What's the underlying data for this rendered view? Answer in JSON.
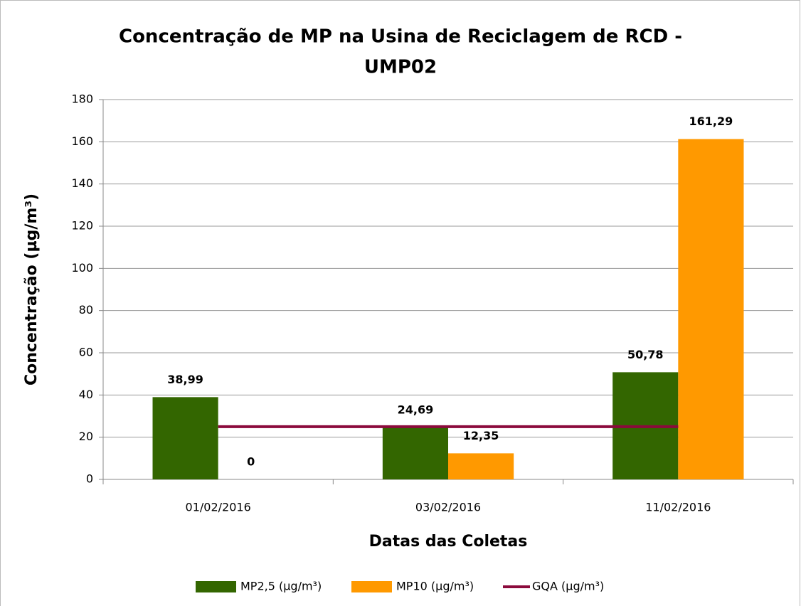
{
  "chart_data": {
    "type": "bar",
    "title": [
      "Concentração de MP na Usina de Reciclagem de RCD -",
      "UMP02"
    ],
    "x_label": "Datas das Coletas",
    "y_label": "Concentração (µg/m³)",
    "categories": [
      "01/02/2016",
      "03/02/2016",
      "11/02/2016"
    ],
    "series": [
      {
        "name": "MP2,5 (µg/m³)",
        "type": "bar",
        "color": "#336600",
        "values": [
          38.99,
          24.69,
          50.78
        ],
        "value_labels": [
          "38,99",
          "24,69",
          "50,78"
        ]
      },
      {
        "name": "MP10 (µg/m³)",
        "type": "bar",
        "color": "#ff9900",
        "values": [
          0,
          12.35,
          161.29
        ],
        "value_labels": [
          "0",
          "12,35",
          "161,29"
        ]
      },
      {
        "name": "GQA (µg/m³)",
        "type": "line",
        "color": "#8b0a3c",
        "values": [
          25,
          25,
          25
        ]
      }
    ],
    "ylim": [
      0,
      180
    ],
    "yticks": [
      0,
      20,
      40,
      60,
      80,
      100,
      120,
      140,
      160,
      180
    ],
    "grid": true,
    "legend": "bottom"
  }
}
